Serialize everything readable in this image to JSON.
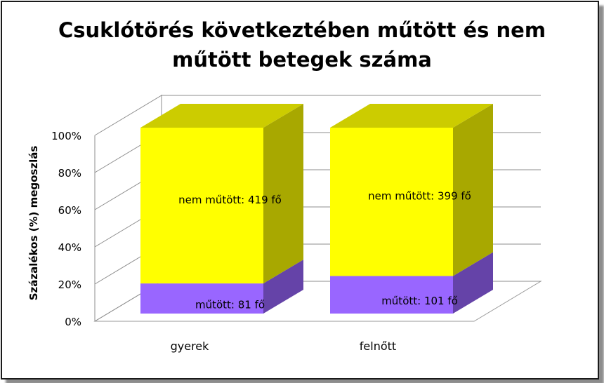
{
  "chart_data": {
    "type": "bar",
    "stacked": "percent",
    "title_lines": [
      "Csuklótörés következtében műtött és nem",
      "műtött betegek száma"
    ],
    "xlabel": "",
    "ylabel": "Százalékos (%) megoszlás",
    "categories": [
      "gyerek",
      "felnőtt"
    ],
    "yticks": [
      "0%",
      "20%",
      "40%",
      "60%",
      "80%",
      "100%"
    ],
    "ylim": [
      0,
      100
    ],
    "grid": true,
    "legend": "none",
    "series": [
      {
        "name": "műtött",
        "values": [
          81,
          101
        ],
        "labels": [
          "műtött: 81 fő",
          "műtött: 101 fő"
        ],
        "color": "#9966ff"
      },
      {
        "name": "nem műtött",
        "values": [
          419,
          399
        ],
        "labels": [
          "nem műtött: 419 fő",
          "nem műtött: 399 fő"
        ],
        "color": "#ffff00"
      }
    ]
  }
}
